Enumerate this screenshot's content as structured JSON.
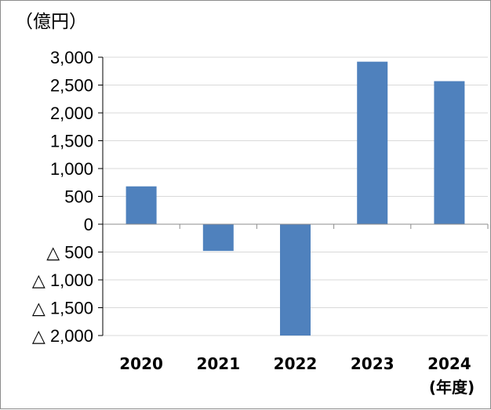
{
  "chart_data": {
    "type": "bar",
    "categories": [
      "2020",
      "2021",
      "2022",
      "2023",
      "2024"
    ],
    "values": [
      680,
      -480,
      -2000,
      2920,
      2570
    ],
    "ylim": [
      -2000,
      3000
    ],
    "yticks": [
      3000,
      2500,
      2000,
      1500,
      1000,
      500,
      0,
      -500,
      -1000,
      -1500,
      -2000
    ],
    "ytick_labels": [
      "3,000",
      "2,500",
      "2,000",
      "1,500",
      "1,000",
      "500",
      "0",
      "△ 500",
      "△ 1,000",
      "△ 1,500",
      "△ 2,000"
    ],
    "y_unit": "（億円）",
    "x_unit": "(年度)",
    "grid": true,
    "bar_color": "#4f81bd",
    "grid_color": "#d9d9d9"
  }
}
